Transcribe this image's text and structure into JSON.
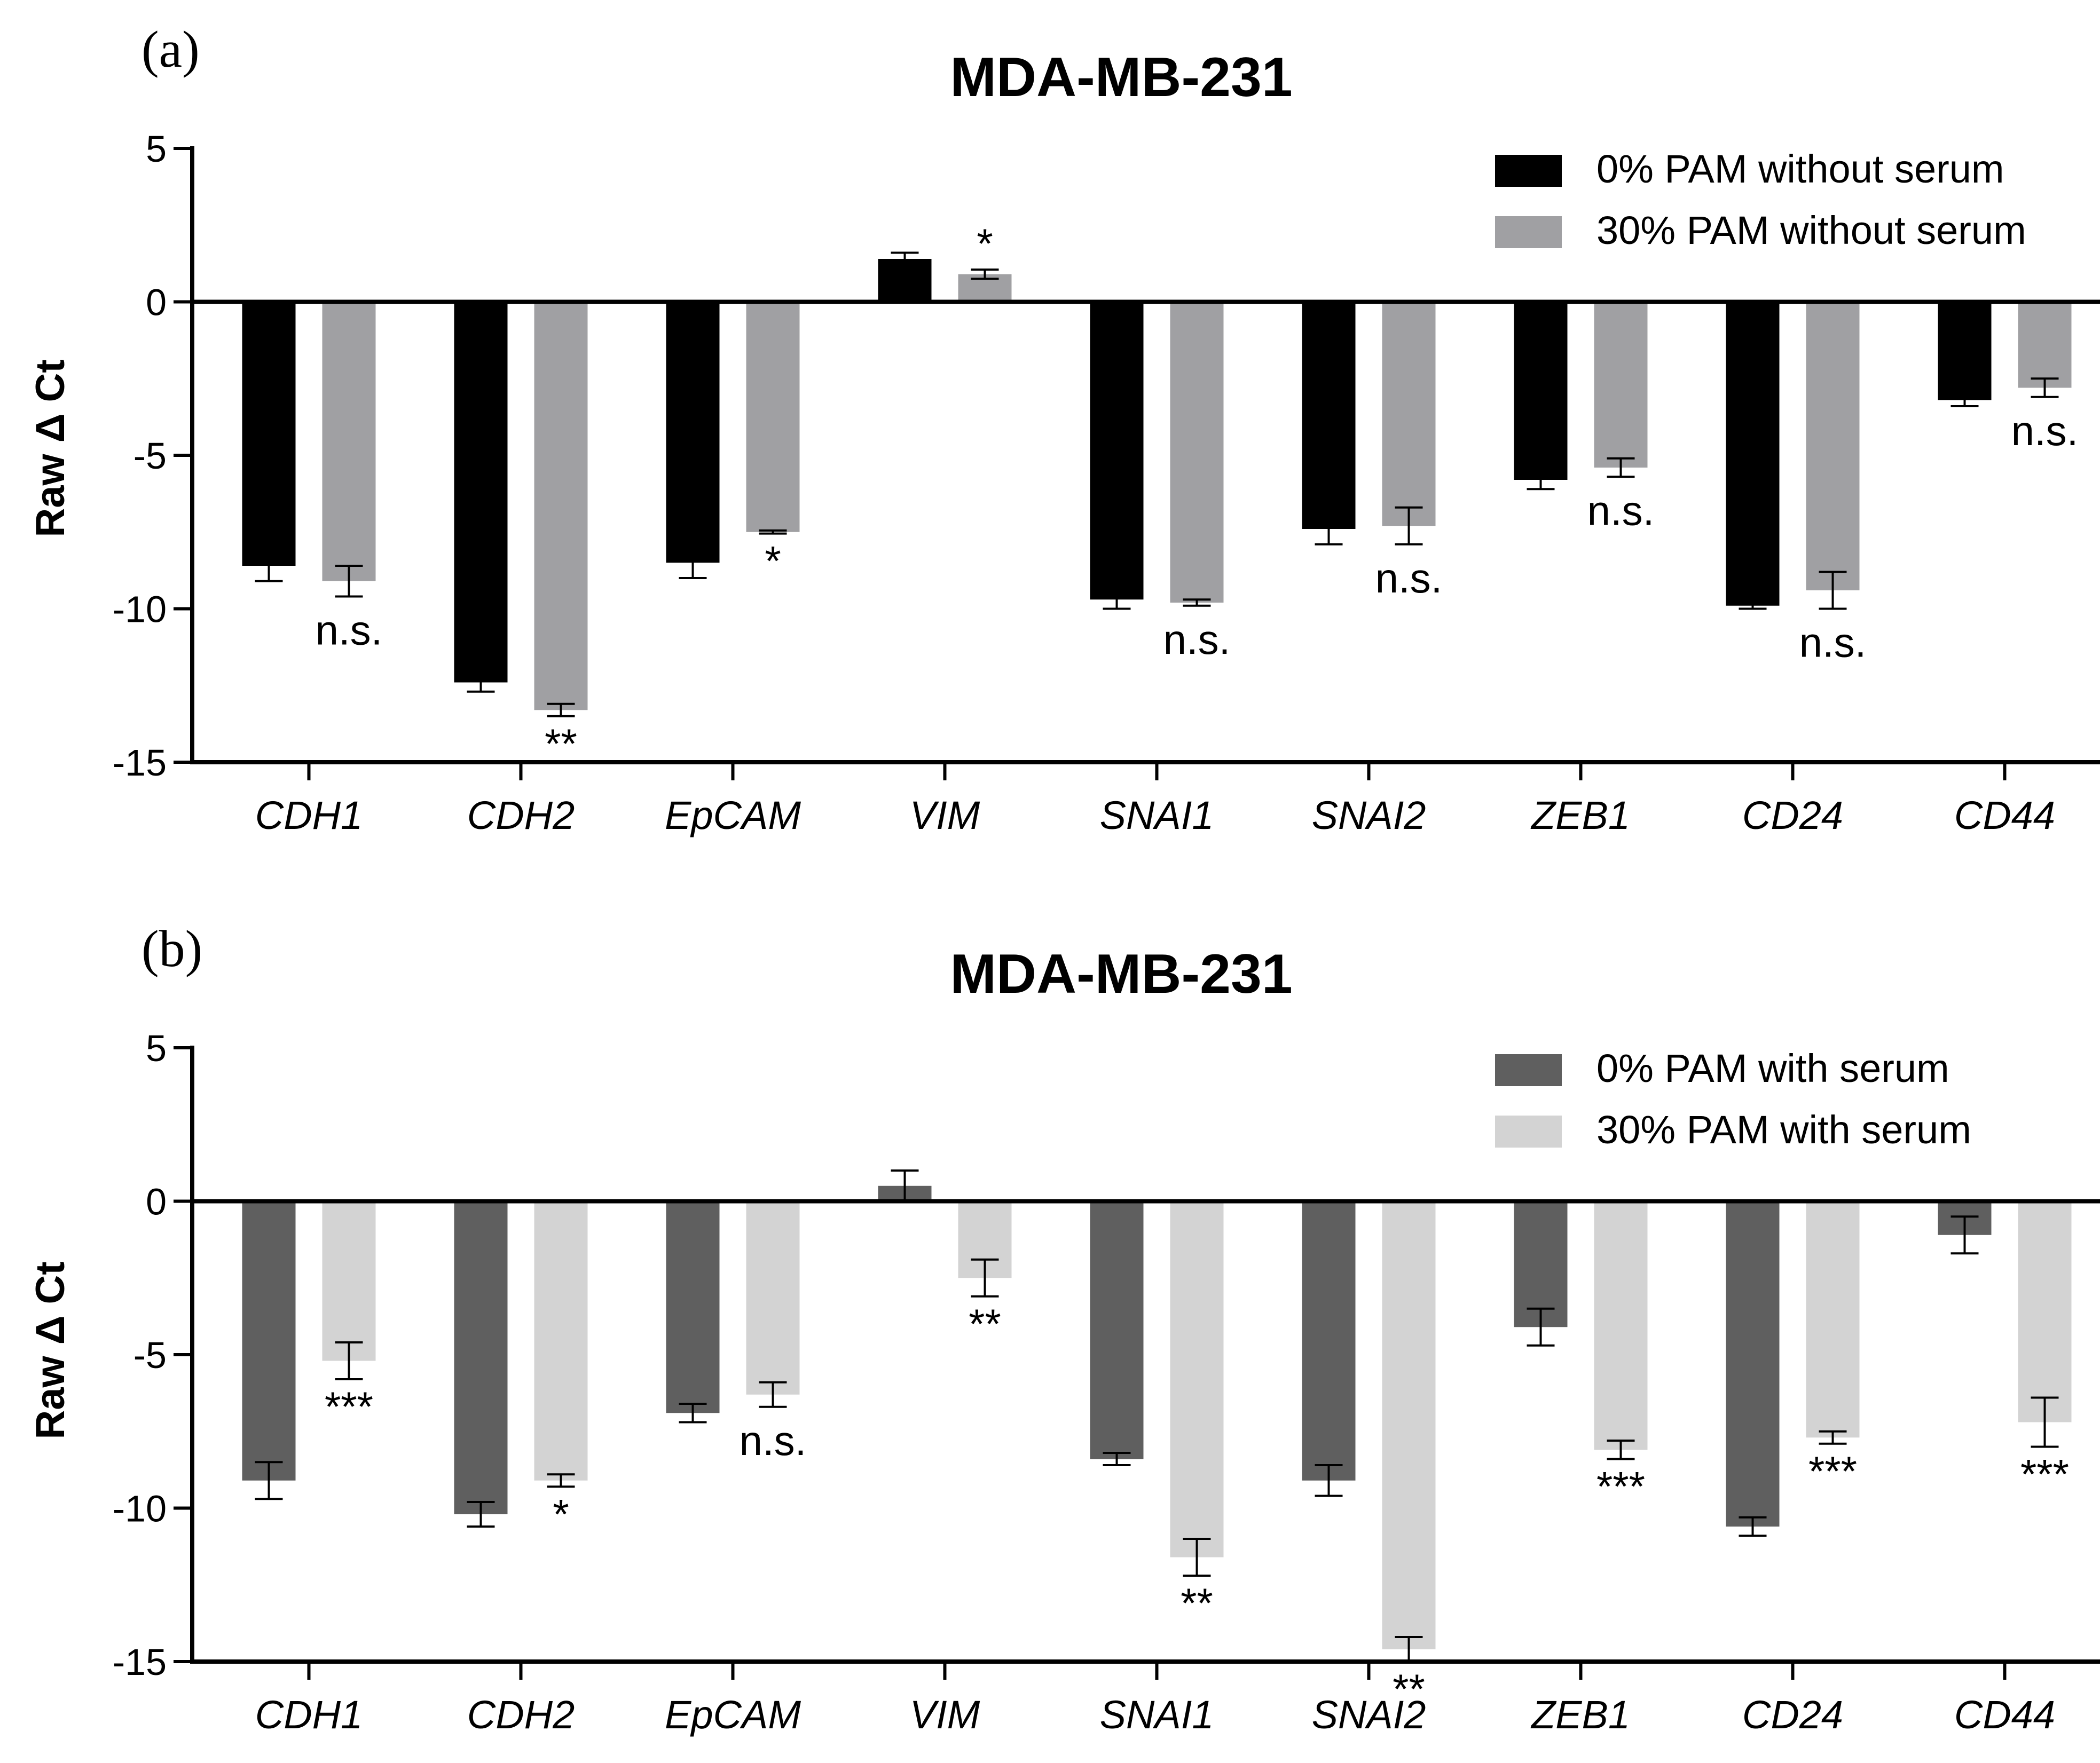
{
  "chart_data": [
    {
      "panel_label": "(a)",
      "type": "bar",
      "title": "MDA-MB-231",
      "ylabel": "Raw Δ Ct",
      "xlabel": "",
      "ylim": [
        -15,
        5
      ],
      "yticks": [
        5,
        0,
        -5,
        -10,
        -15
      ],
      "categories": [
        "CDH1",
        "CDH2",
        "EpCAM",
        "VIM",
        "SNAI1",
        "SNAI2",
        "ZEB1",
        "CD24",
        "CD44"
      ],
      "legend_position": "top-right",
      "series": [
        {
          "name": "0% PAM without serum",
          "color": "#000000",
          "values": [
            -8.6,
            -12.4,
            -8.5,
            1.4,
            -9.7,
            -7.4,
            -5.8,
            -9.9,
            -3.2
          ],
          "errors": [
            0.5,
            0.3,
            0.5,
            0.2,
            0.3,
            0.5,
            0.3,
            0.1,
            0.2
          ]
        },
        {
          "name": "30% PAM without serum",
          "color": "#a0a0a3",
          "values": [
            -9.1,
            -13.3,
            -7.5,
            0.9,
            -9.8,
            -7.3,
            -5.4,
            -9.4,
            -2.8
          ],
          "errors": [
            0.5,
            0.2,
            0.05,
            0.15,
            0.1,
            0.6,
            0.3,
            0.6,
            0.3
          ]
        }
      ],
      "annotations": [
        "n.s.",
        "**",
        "*",
        "*",
        "n.s.",
        "n.s.",
        "n.s.",
        "n.s.",
        "n.s."
      ]
    },
    {
      "panel_label": "(b)",
      "type": "bar",
      "title": "MDA-MB-231",
      "ylabel": "Raw Δ Ct",
      "xlabel": "",
      "ylim": [
        -15,
        5
      ],
      "yticks": [
        5,
        0,
        -5,
        -10,
        -15
      ],
      "categories": [
        "CDH1",
        "CDH2",
        "EpCAM",
        "VIM",
        "SNAI1",
        "SNAI2",
        "ZEB1",
        "CD24",
        "CD44"
      ],
      "legend_position": "top-right",
      "series": [
        {
          "name": "0% PAM with serum",
          "color": "#5f5f5f",
          "values": [
            -9.1,
            -10.2,
            -6.9,
            0.5,
            -8.4,
            -9.1,
            -4.1,
            -10.6,
            -1.1
          ],
          "errors": [
            0.6,
            0.4,
            0.3,
            0.5,
            0.2,
            0.5,
            0.6,
            0.3,
            0.6
          ]
        },
        {
          "name": "30% PAM with serum",
          "color": "#d3d3d3",
          "values": [
            -5.2,
            -9.1,
            -6.3,
            -2.5,
            -11.6,
            -14.6,
            -8.1,
            -7.7,
            -7.2
          ],
          "errors": [
            0.6,
            0.2,
            0.4,
            0.6,
            0.6,
            0.4,
            0.3,
            0.2,
            0.8
          ]
        }
      ],
      "annotations": [
        "***",
        "*",
        "n.s.",
        "**",
        "**",
        "**",
        "***",
        "***",
        "***"
      ]
    }
  ]
}
